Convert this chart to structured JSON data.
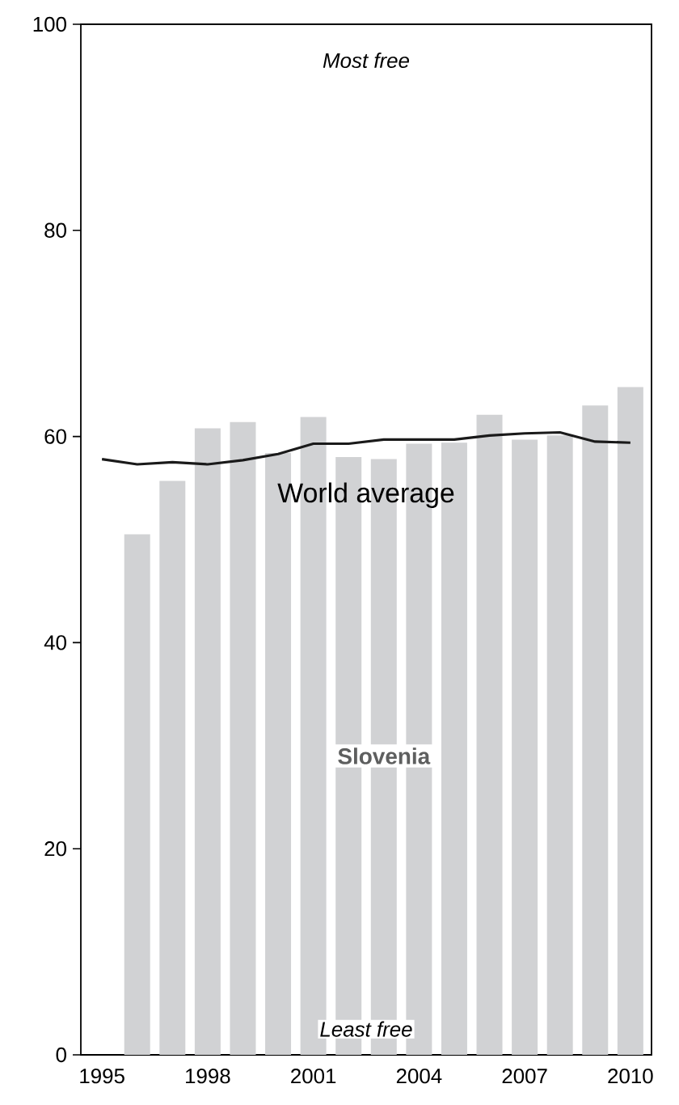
{
  "chart_data": {
    "type": "bar",
    "xlim": [
      1994.4,
      2010.6
    ],
    "ylim": [
      0,
      100
    ],
    "xticks": [
      1995,
      1998,
      2001,
      2004,
      2007,
      2010
    ],
    "yticks": [
      0,
      20,
      40,
      60,
      80,
      100
    ],
    "grid": false,
    "legend": false,
    "series": [
      {
        "name": "Slovenia",
        "color": "#d1d2d4",
        "x": [
          1996,
          1997,
          1998,
          1999,
          2000,
          2001,
          2002,
          2003,
          2004,
          2005,
          2006,
          2007,
          2008,
          2009,
          2010
        ],
        "values": [
          50.5,
          55.7,
          60.8,
          61.4,
          58.4,
          61.9,
          58.0,
          57.8,
          59.3,
          59.4,
          62.1,
          59.7,
          60.1,
          63.0,
          64.8
        ]
      },
      {
        "name": "World average",
        "type": "line",
        "color": "#1a1a1a",
        "x": [
          1995,
          1996,
          1997,
          1998,
          1999,
          2000,
          2001,
          2002,
          2003,
          2004,
          2005,
          2006,
          2007,
          2008,
          2009,
          2010
        ],
        "values": [
          57.8,
          57.3,
          57.5,
          57.3,
          57.7,
          58.3,
          59.3,
          59.3,
          59.7,
          59.7,
          59.7,
          60.1,
          60.3,
          60.4,
          59.5,
          59.4
        ]
      }
    ],
    "annotations": [
      "Most free",
      "Least free"
    ]
  }
}
